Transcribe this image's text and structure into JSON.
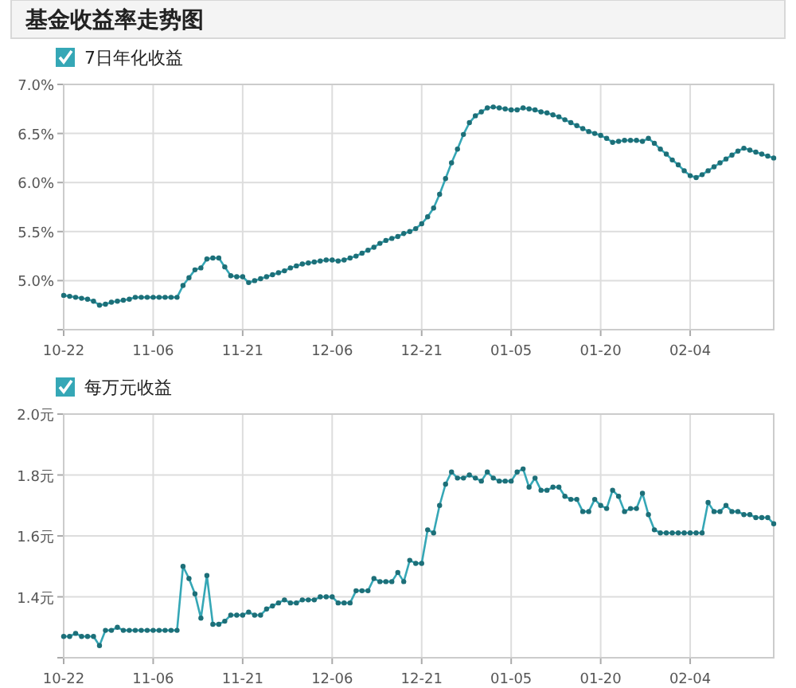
{
  "chart_data": [
    {
      "type": "line",
      "title": "基金收益率走势图",
      "legend": "top left",
      "grid": true,
      "marker": "circle",
      "categories": [
        "10-22",
        null,
        null,
        null,
        null,
        null,
        null,
        null,
        null,
        null,
        null,
        null,
        null,
        null,
        null,
        "11-06",
        null,
        null,
        null,
        null,
        null,
        null,
        null,
        null,
        null,
        null,
        null,
        null,
        null,
        null,
        "11-21",
        null,
        null,
        null,
        null,
        null,
        null,
        null,
        null,
        null,
        null,
        null,
        null,
        null,
        null,
        "12-06",
        null,
        null,
        null,
        null,
        null,
        null,
        null,
        null,
        null,
        null,
        null,
        null,
        null,
        null,
        "12-21",
        null,
        null,
        null,
        null,
        null,
        null,
        null,
        null,
        null,
        null,
        null,
        null,
        null,
        null,
        "01-05",
        null,
        null,
        null,
        null,
        null,
        null,
        null,
        null,
        null,
        null,
        null,
        null,
        null,
        null,
        "01-20",
        null,
        null,
        null,
        null,
        null,
        null,
        null,
        null,
        null,
        null,
        null,
        null,
        null,
        null,
        "02-04",
        null,
        null,
        null,
        null,
        null,
        null,
        null,
        null,
        null,
        null,
        null,
        null,
        null,
        null
      ],
      "ylim": [
        4.5,
        7.0
      ],
      "yticks": [
        {
          "value": 4.5,
          "label": null
        },
        {
          "value": 5.0,
          "label": "5.0%"
        },
        {
          "value": 5.5,
          "label": "5.5%"
        },
        {
          "value": 6.0,
          "label": "6.0%"
        },
        {
          "value": 6.5,
          "label": "6.5%"
        },
        {
          "value": 7.0,
          "label": "7.0%"
        }
      ],
      "series": [
        {
          "name": "7日年化收益",
          "color": "#35a7b6",
          "values": [
            4.85,
            4.84,
            4.83,
            4.82,
            4.81,
            4.79,
            4.75,
            4.76,
            4.78,
            4.79,
            4.8,
            4.81,
            4.83,
            4.83,
            4.83,
            4.83,
            4.83,
            4.83,
            4.83,
            4.83,
            4.95,
            5.03,
            5.11,
            5.13,
            5.22,
            5.23,
            5.23,
            5.14,
            5.05,
            5.04,
            5.04,
            4.98,
            5.0,
            5.02,
            5.04,
            5.06,
            5.08,
            5.1,
            5.13,
            5.15,
            5.17,
            5.18,
            5.19,
            5.2,
            5.21,
            5.21,
            5.2,
            5.21,
            5.23,
            5.25,
            5.28,
            5.31,
            5.34,
            5.38,
            5.41,
            5.43,
            5.45,
            5.48,
            5.5,
            5.53,
            5.58,
            5.65,
            5.74,
            5.88,
            6.04,
            6.2,
            6.34,
            6.49,
            6.61,
            6.68,
            6.72,
            6.76,
            6.77,
            6.76,
            6.75,
            6.74,
            6.74,
            6.76,
            6.75,
            6.74,
            6.72,
            6.71,
            6.69,
            6.67,
            6.64,
            6.61,
            6.58,
            6.55,
            6.52,
            6.5,
            6.48,
            6.45,
            6.41,
            6.42,
            6.43,
            6.43,
            6.43,
            6.42,
            6.45,
            6.4,
            6.34,
            6.29,
            6.23,
            6.18,
            6.12,
            6.07,
            6.05,
            6.08,
            6.12,
            6.16,
            6.2,
            6.24,
            6.28,
            6.32,
            6.35,
            6.33,
            6.31,
            6.29,
            6.27,
            6.25
          ]
        }
      ]
    },
    {
      "type": "line",
      "legend": "top left",
      "grid": true,
      "marker": "circle",
      "categories": [
        "10-22",
        null,
        null,
        null,
        null,
        null,
        null,
        null,
        null,
        null,
        null,
        null,
        null,
        null,
        null,
        "11-06",
        null,
        null,
        null,
        null,
        null,
        null,
        null,
        null,
        null,
        null,
        null,
        null,
        null,
        null,
        "11-21",
        null,
        null,
        null,
        null,
        null,
        null,
        null,
        null,
        null,
        null,
        null,
        null,
        null,
        null,
        "12-06",
        null,
        null,
        null,
        null,
        null,
        null,
        null,
        null,
        null,
        null,
        null,
        null,
        null,
        null,
        "12-21",
        null,
        null,
        null,
        null,
        null,
        null,
        null,
        null,
        null,
        null,
        null,
        null,
        null,
        null,
        "01-05",
        null,
        null,
        null,
        null,
        null,
        null,
        null,
        null,
        null,
        null,
        null,
        null,
        null,
        null,
        "01-20",
        null,
        null,
        null,
        null,
        null,
        null,
        null,
        null,
        null,
        null,
        null,
        null,
        null,
        null,
        "02-04",
        null,
        null,
        null,
        null,
        null,
        null,
        null,
        null,
        null,
        null,
        null,
        null,
        null,
        null
      ],
      "ylim": [
        1.2,
        2.0
      ],
      "yticks": [
        {
          "value": 1.2,
          "label": null
        },
        {
          "value": 1.4,
          "label": "1.4元"
        },
        {
          "value": 1.6,
          "label": "1.6元"
        },
        {
          "value": 1.8,
          "label": "1.8元"
        },
        {
          "value": 2.0,
          "label": "2.0元"
        }
      ],
      "series": [
        {
          "name": "每万元收益",
          "color": "#35a7b6",
          "values": [
            1.27,
            1.27,
            1.28,
            1.27,
            1.27,
            1.27,
            1.24,
            1.29,
            1.29,
            1.3,
            1.29,
            1.29,
            1.29,
            1.29,
            1.29,
            1.29,
            1.29,
            1.29,
            1.29,
            1.29,
            1.5,
            1.46,
            1.41,
            1.33,
            1.47,
            1.31,
            1.31,
            1.32,
            1.34,
            1.34,
            1.34,
            1.35,
            1.34,
            1.34,
            1.36,
            1.37,
            1.38,
            1.39,
            1.38,
            1.38,
            1.39,
            1.39,
            1.39,
            1.4,
            1.4,
            1.4,
            1.38,
            1.38,
            1.38,
            1.42,
            1.42,
            1.42,
            1.46,
            1.45,
            1.45,
            1.45,
            1.48,
            1.45,
            1.52,
            1.51,
            1.51,
            1.62,
            1.61,
            1.7,
            1.77,
            1.81,
            1.79,
            1.79,
            1.8,
            1.79,
            1.78,
            1.81,
            1.79,
            1.78,
            1.78,
            1.78,
            1.81,
            1.82,
            1.76,
            1.79,
            1.75,
            1.75,
            1.76,
            1.76,
            1.73,
            1.72,
            1.72,
            1.68,
            1.68,
            1.72,
            1.7,
            1.69,
            1.75,
            1.73,
            1.68,
            1.69,
            1.69,
            1.74,
            1.67,
            1.62,
            1.61,
            1.61,
            1.61,
            1.61,
            1.61,
            1.61,
            1.61,
            1.61,
            1.71,
            1.68,
            1.68,
            1.7,
            1.68,
            1.68,
            1.67,
            1.67,
            1.66,
            1.66,
            1.66,
            1.64
          ]
        }
      ]
    }
  ]
}
